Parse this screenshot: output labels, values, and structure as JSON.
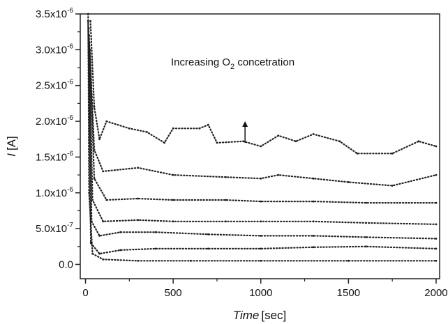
{
  "chart_data": {
    "type": "scatter",
    "xlabel": {
      "italic": "Time",
      "unit": "[sec]"
    },
    "ylabel": {
      "italic": "I",
      "unit": "[A]"
    },
    "xlim": [
      -30,
      2020
    ],
    "ylim": [
      -2e-07,
      3.5e-06
    ],
    "x_ticks": [
      0,
      500,
      1000,
      1500,
      2000
    ],
    "x_tick_labels": [
      "0",
      "500",
      "1000",
      "1500",
      "2000"
    ],
    "y_ticks": [
      0,
      5e-07,
      1e-06,
      1.5e-06,
      2e-06,
      2.5e-06,
      3e-06,
      3.5e-06
    ],
    "y_tick_labels": [
      "0.0",
      "5.0x10",
      "1.0x10",
      "1.5x10",
      "2.0x10",
      "2.5x10",
      "3.0x10",
      "3.5x10"
    ],
    "y_tick_exponents": [
      "",
      "-7",
      "-6",
      "-6",
      "-6",
      "-6",
      "-6",
      "-6"
    ],
    "grid": false,
    "legend": false,
    "annotation": {
      "text_before": "Increasing O",
      "subscript": "2",
      "text_after": " concetration",
      "arrow": "up",
      "arrow_at": {
        "x": 910,
        "y_from": 1.7e-06,
        "y_to": 2e-06
      }
    },
    "series": [
      {
        "values": [
          [
            15,
            3.5e-06
          ],
          [
            20,
            1e-06
          ],
          [
            40,
            1.5e-07
          ],
          [
            100,
            7e-08
          ],
          [
            300,
            5e-08
          ],
          [
            600,
            5e-08
          ],
          [
            1000,
            5e-08
          ],
          [
            1500,
            5e-08
          ],
          [
            2000,
            5e-08
          ]
        ]
      },
      {
        "values": [
          [
            15,
            3.4e-06
          ],
          [
            30,
            3e-07
          ],
          [
            80,
            1.5e-07
          ],
          [
            200,
            2e-07
          ],
          [
            400,
            2.2e-07
          ],
          [
            700,
            2.2e-07
          ],
          [
            1000,
            2.2e-07
          ],
          [
            1300,
            2.4e-07
          ],
          [
            1600,
            2.5e-07
          ],
          [
            2000,
            2.2e-07
          ]
        ]
      },
      {
        "values": [
          [
            18,
            3.3e-06
          ],
          [
            35,
            6e-07
          ],
          [
            80,
            4e-07
          ],
          [
            200,
            4.5e-07
          ],
          [
            400,
            4.5e-07
          ],
          [
            700,
            4.2e-07
          ],
          [
            1000,
            4e-07
          ],
          [
            1300,
            4e-07
          ],
          [
            1600,
            3.8e-07
          ],
          [
            2000,
            3.6e-07
          ]
        ]
      },
      {
        "values": [
          [
            20,
            3.2e-06
          ],
          [
            40,
            9e-07
          ],
          [
            100,
            6e-07
          ],
          [
            300,
            6.2e-07
          ],
          [
            500,
            6e-07
          ],
          [
            800,
            6e-07
          ],
          [
            1000,
            6e-07
          ],
          [
            1300,
            6e-07
          ],
          [
            1600,
            5.8e-07
          ],
          [
            2000,
            5.6e-07
          ]
        ]
      },
      {
        "values": [
          [
            22,
            3.1e-06
          ],
          [
            50,
            1.2e-06
          ],
          [
            120,
            9e-07
          ],
          [
            300,
            9.2e-07
          ],
          [
            500,
            9e-07
          ],
          [
            800,
            9e-07
          ],
          [
            1000,
            8.8e-07
          ],
          [
            1300,
            8.8e-07
          ],
          [
            1600,
            8.6e-07
          ],
          [
            2000,
            8.6e-07
          ]
        ]
      },
      {
        "values": [
          [
            25,
            3e-06
          ],
          [
            50,
            1.6e-06
          ],
          [
            100,
            1.3e-06
          ],
          [
            300,
            1.35e-06
          ],
          [
            500,
            1.25e-06
          ],
          [
            800,
            1.22e-06
          ],
          [
            1000,
            1.2e-06
          ],
          [
            1100,
            1.25e-06
          ],
          [
            1300,
            1.2e-06
          ],
          [
            1500,
            1.15e-06
          ],
          [
            1750,
            1.1e-06
          ],
          [
            2000,
            1.25e-06
          ]
        ]
      },
      {
        "values": [
          [
            28,
            3.4e-06
          ],
          [
            50,
            2.2e-06
          ],
          [
            80,
            1.75e-06
          ],
          [
            120,
            2e-06
          ],
          [
            250,
            1.9e-06
          ],
          [
            350,
            1.85e-06
          ],
          [
            450,
            1.7e-06
          ],
          [
            500,
            1.9e-06
          ],
          [
            650,
            1.9e-06
          ],
          [
            700,
            1.95e-06
          ],
          [
            750,
            1.7e-06
          ],
          [
            900,
            1.72e-06
          ],
          [
            1000,
            1.65e-06
          ],
          [
            1100,
            1.8e-06
          ],
          [
            1200,
            1.72e-06
          ],
          [
            1300,
            1.82e-06
          ],
          [
            1450,
            1.72e-06
          ],
          [
            1550,
            1.55e-06
          ],
          [
            1750,
            1.55e-06
          ],
          [
            1900,
            1.72e-06
          ],
          [
            2000,
            1.65e-06
          ]
        ]
      }
    ]
  }
}
